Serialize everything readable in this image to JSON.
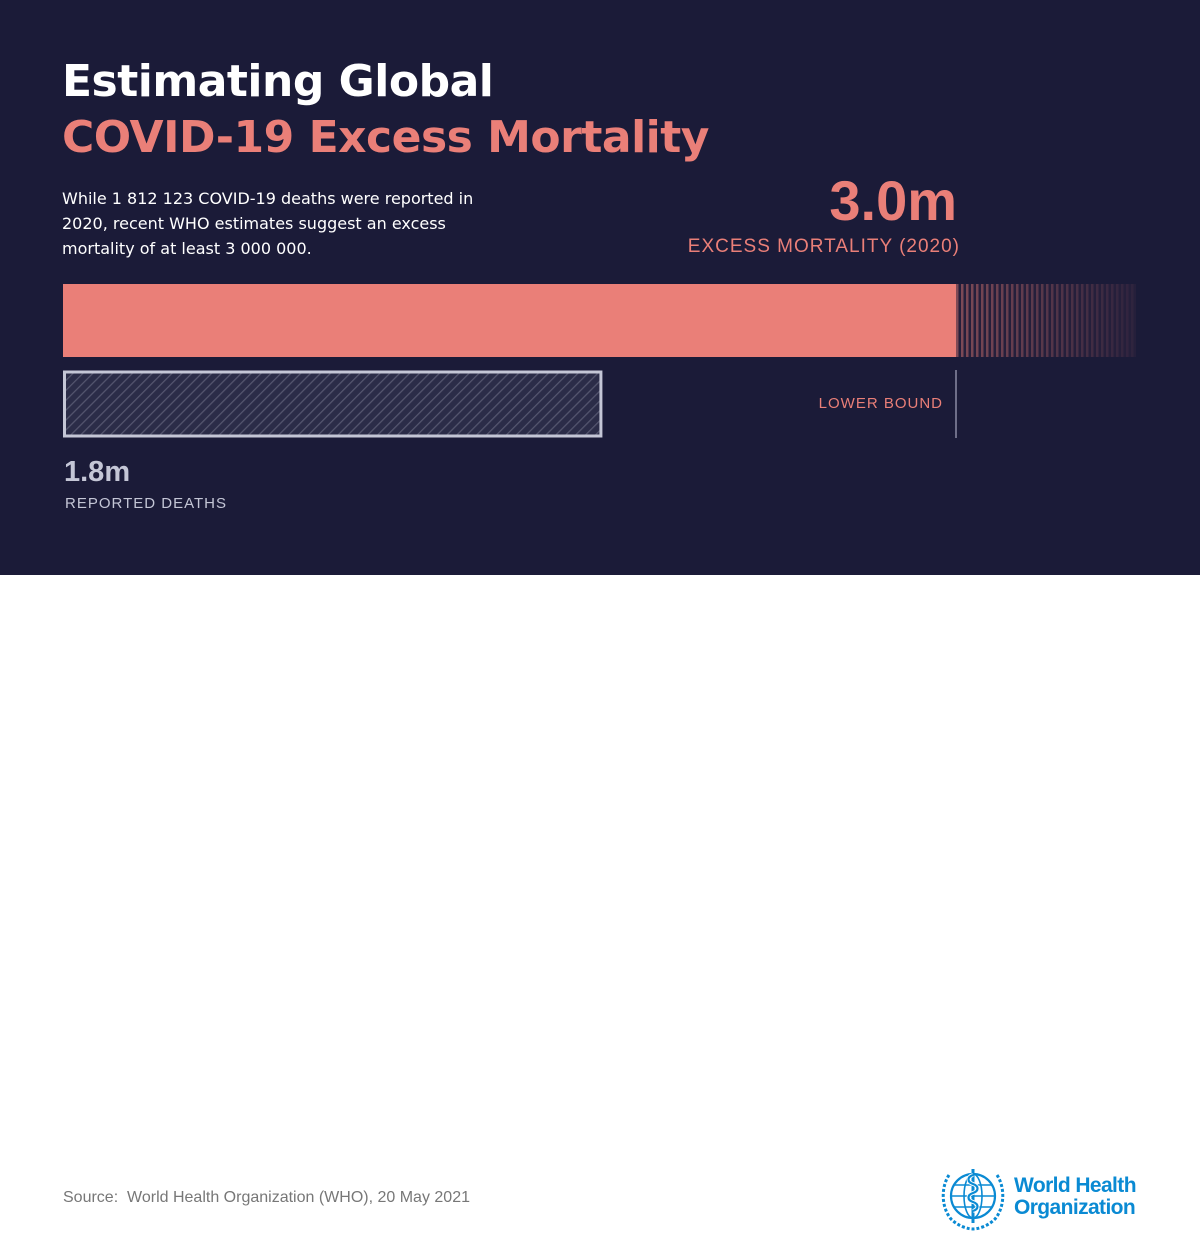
{
  "title": {
    "line1": "Estimating Global",
    "line2": "COVID-19 Excess Mortality"
  },
  "description": "While 1 812 123 COVID-19 deaths were reported in 2020, recent WHO estimates suggest an excess mortality of at least 3 000 000.",
  "colors": {
    "background": "#1b1b38",
    "excess": "#ea7f78",
    "reported": "#c4c6d6",
    "who_blue": "#0a8ad3"
  },
  "chart_data": {
    "type": "bar",
    "orientation": "horizontal",
    "series": [
      {
        "name": "EXCESS MORTALITY (2020)",
        "value": 3000000,
        "value_label": "3.0m",
        "style": "solid",
        "color": "#ea7f78"
      },
      {
        "name": "REPORTED DEATHS",
        "value": 1812123,
        "value_label": "1.8m",
        "style": "hatched-outline",
        "color": "#c4c6d6"
      }
    ],
    "lower_bound": {
      "label": "LOWER BOUND",
      "value": 3000000
    },
    "uncertainty_extension": "faded vertical stripes beyond the lower bound",
    "xlim": [
      0,
      3000000
    ],
    "grid": false,
    "legend": "none"
  },
  "footer": {
    "source": "Source:  World Health Organization (WHO), 20 May 2021",
    "logo": {
      "icon": "who-emblem-icon",
      "line1": "World Health",
      "line2": "Organization"
    }
  }
}
